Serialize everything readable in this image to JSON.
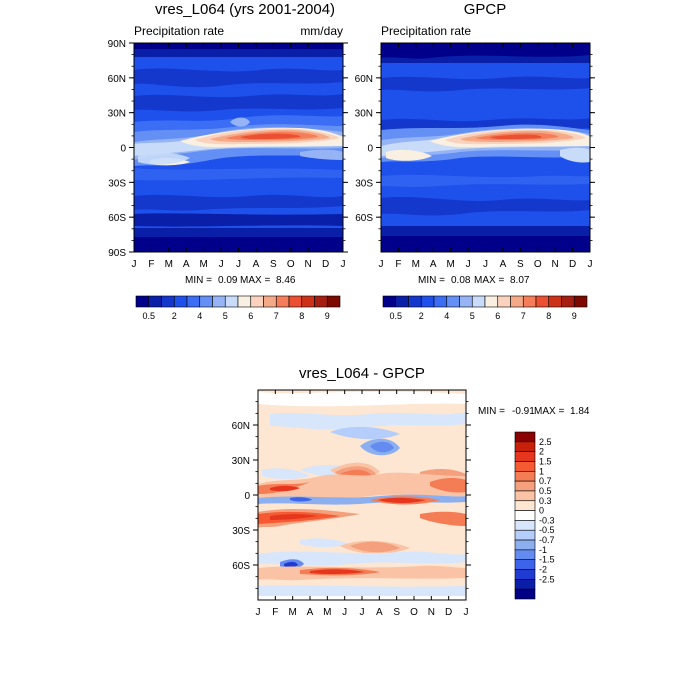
{
  "chart_data": [
    {
      "type": "heatmap",
      "title": "vres_L064 (yrs 2001-2004)",
      "subtitle_left": "Precipitation rate",
      "subtitle_right": "mm/day",
      "x_ticks": [
        "J",
        "F",
        "M",
        "A",
        "M",
        "J",
        "J",
        "A",
        "S",
        "O",
        "N",
        "D",
        "J"
      ],
      "y_ticks": [
        "90N",
        "60N",
        "30N",
        "0",
        "30S",
        "60S",
        "90S"
      ],
      "ylim": [
        -90,
        90
      ],
      "min": "0.09",
      "max": "8.46",
      "min_label": "MIN =",
      "max_label": "MAX =",
      "colorbar_labels": [
        "0.5",
        "2",
        "4",
        "5",
        "6",
        "7",
        "8",
        "9"
      ],
      "colorbar_colors": [
        "#00008b",
        "#0a1fa8",
        "#1437cc",
        "#1e50eb",
        "#3c6ef5",
        "#6490f5",
        "#96b4f5",
        "#c8dcfa",
        "#faf0e1",
        "#fad2be",
        "#f5aa87",
        "#f57d5a",
        "#eb5032",
        "#cd3219",
        "#a51e0f",
        "#7d0a00"
      ],
      "colorbar_edges": [
        0.2,
        0.5,
        1,
        2,
        3,
        4,
        4.5,
        5,
        5.5,
        6,
        6.5,
        7,
        7.5,
        8,
        8.5,
        9,
        9.5
      ]
    },
    {
      "type": "heatmap",
      "title": "GPCP",
      "subtitle_left": "Precipitation rate",
      "x_ticks": [
        "J",
        "F",
        "M",
        "A",
        "M",
        "J",
        "J",
        "A",
        "S",
        "O",
        "N",
        "D",
        "J"
      ],
      "y_ticks": [
        "60N",
        "30N",
        "0",
        "30S",
        "60S"
      ],
      "ylim": [
        -90,
        90
      ],
      "min": "0.08",
      "max": "8.07",
      "min_label": "MIN =",
      "max_label": "MAX =",
      "colorbar_labels": [
        "0.5",
        "2",
        "4",
        "5",
        "6",
        "7",
        "8",
        "9"
      ],
      "colorbar_colors": [
        "#00008b",
        "#0a1fa8",
        "#1437cc",
        "#1e50eb",
        "#3c6ef5",
        "#6490f5",
        "#96b4f5",
        "#c8dcfa",
        "#faf0e1",
        "#fad2be",
        "#f5aa87",
        "#f57d5a",
        "#eb5032",
        "#cd3219",
        "#a51e0f",
        "#7d0a00"
      ],
      "colorbar_edges": [
        0.2,
        0.5,
        1,
        2,
        3,
        4,
        4.5,
        5,
        5.5,
        6,
        6.5,
        7,
        7.5,
        8,
        8.5,
        9,
        9.5
      ]
    },
    {
      "type": "heatmap",
      "title": "vres_L064 - GPCP",
      "x_ticks": [
        "J",
        "F",
        "M",
        "A",
        "M",
        "J",
        "J",
        "A",
        "S",
        "O",
        "N",
        "D",
        "J"
      ],
      "y_ticks": [
        "60N",
        "30N",
        "0",
        "30S",
        "60S"
      ],
      "ylim": [
        -90,
        90
      ],
      "min": "-0.91",
      "max": "1.84",
      "min_label": "MIN =",
      "max_label": "MAX =",
      "colorbar_labels": [
        "2.5",
        "2",
        "1.5",
        "1",
        "0.7",
        "0.5",
        "0.3",
        "0",
        "-0.3",
        "-0.5",
        "-0.7",
        "-1",
        "-1.5",
        "-2",
        "-2.5"
      ],
      "colorbar_colors": [
        "#8b0000",
        "#c8200a",
        "#e6371e",
        "#f55a32",
        "#f57d55",
        "#f5a07d",
        "#fac3a5",
        "#fde6d2",
        "#ffffff",
        "#d7e6fa",
        "#b4cdfa",
        "#8cafef",
        "#648cf0",
        "#3c64eb",
        "#1e3cd2",
        "#0a1eaa",
        "#000087"
      ],
      "colorbar_edges": [
        3,
        2.5,
        2,
        1.5,
        1,
        0.7,
        0.5,
        0.3,
        0,
        -0.3,
        -0.5,
        -0.7,
        -1,
        -1.5,
        -2,
        -2.5,
        -3
      ]
    }
  ]
}
